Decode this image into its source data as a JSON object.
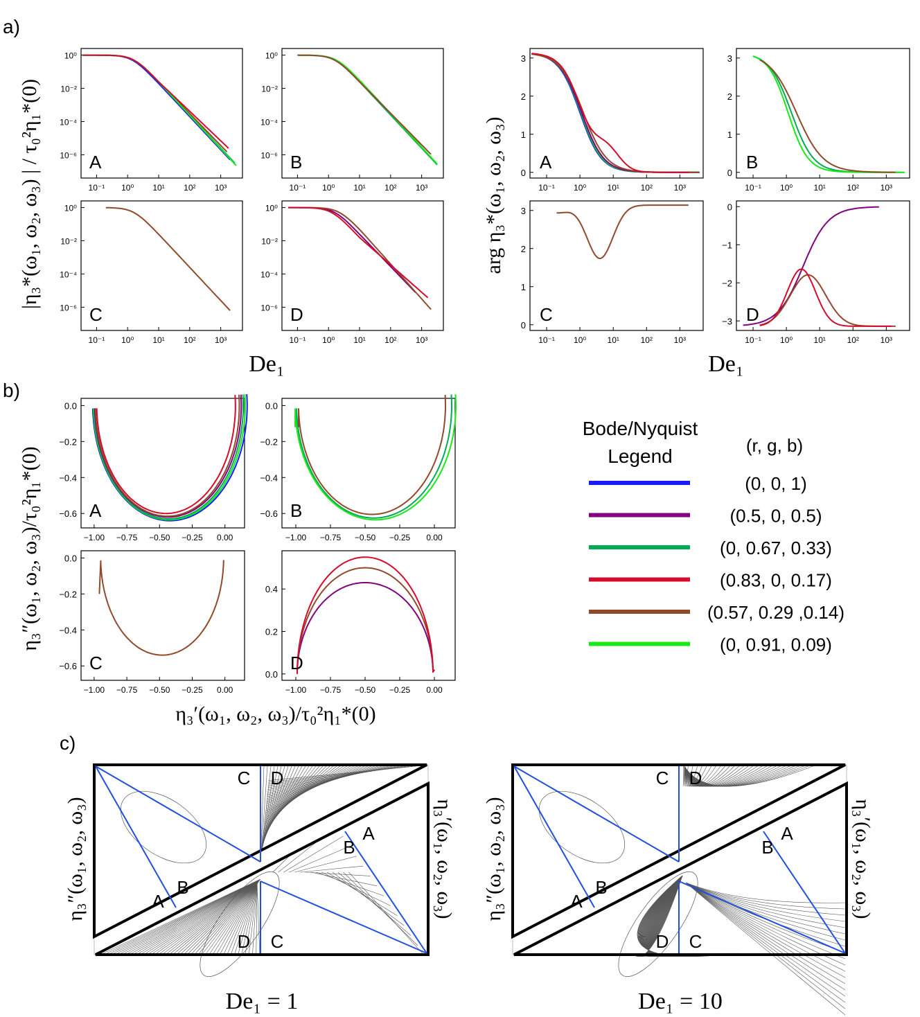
{
  "figure": {
    "section_labels": {
      "a": "a)",
      "b": "b)",
      "c": "c)"
    },
    "colors": {
      "blue": "#1a1aff",
      "purple": "#800080",
      "green": "#00ab55",
      "red": "#d40b2b",
      "brown": "#91492a",
      "lime": "#17e817",
      "line_c": "#1f4fe0",
      "contour": "#555555"
    }
  },
  "panel_a": {
    "magnitude": {
      "ylabel": "|η₃*(ω₁, ω₂, ω₃) | / τ₀²η₁*(0)",
      "xlabel": "De₁",
      "yticks": [
        "10⁰",
        "10⁻²",
        "10⁻⁴",
        "10⁻⁶"
      ],
      "xticks": [
        "10⁻¹",
        "10⁰",
        "10¹",
        "10²",
        "10³"
      ],
      "xlog_range": [
        -1.5,
        3.7
      ],
      "ylog_range": [
        -7.4,
        0.4
      ]
    },
    "phase": {
      "ylabel": "arg η₃*(ω₁, ω₂, ω₃)",
      "xlabel": "De₁",
      "yticks_abc": [
        "3",
        "2",
        "1",
        "0"
      ],
      "yticks_d": [
        "0",
        "−1",
        "−2",
        "−3"
      ],
      "xticks": [
        "10⁻¹",
        "10⁰",
        "10¹",
        "10²",
        "10³"
      ]
    },
    "subplot_labels": [
      "A",
      "B",
      "C",
      "D"
    ]
  },
  "panel_b": {
    "ylabel": "η₃″(ω₁, ω₂, ω₃)/τ₀²η₁*(0)",
    "xlabel": "η₃′(ω₁, ω₂, ω₃)/τ₀²η₁*(0)",
    "xticks": [
      "−1.00",
      "−0.75",
      "−0.50",
      "−0.25",
      "0.00"
    ],
    "yticks_abc": [
      "0.0",
      "−0.2",
      "−0.4",
      "−0.6"
    ],
    "yticks_d": [
      "0.4",
      "0.2",
      "0.0"
    ],
    "subplot_labels": [
      "A",
      "B",
      "C",
      "D"
    ]
  },
  "legend": {
    "title_line1": "Bode/Nyquist",
    "title_line2": "Legend",
    "column_header": "(r, g, b)",
    "entries": [
      {
        "label": "(0, 0, 1)",
        "color": "#1a1aff"
      },
      {
        "label": "(0.5, 0, 0.5)",
        "color": "#800080"
      },
      {
        "label": "(0, 0.67, 0.33)",
        "color": "#00ab55"
      },
      {
        "label": "(0.83, 0, 0.17)",
        "color": "#d40b2b"
      },
      {
        "label": "(0.57, 0.29 ,0.14)",
        "color": "#91492a"
      },
      {
        "label": "(0, 0.91, 0.09)",
        "color": "#17e817"
      }
    ]
  },
  "panel_c": {
    "left_ylabel": "η₃″(ω₁, ω₂, ω₃)",
    "right_ylabel": "η₃′(ω₁, ω₂, ω₃)",
    "left_caption": "De₁ = 1",
    "right_caption": "De₁ = 10",
    "path_labels": [
      "A",
      "B",
      "C",
      "D"
    ]
  }
}
